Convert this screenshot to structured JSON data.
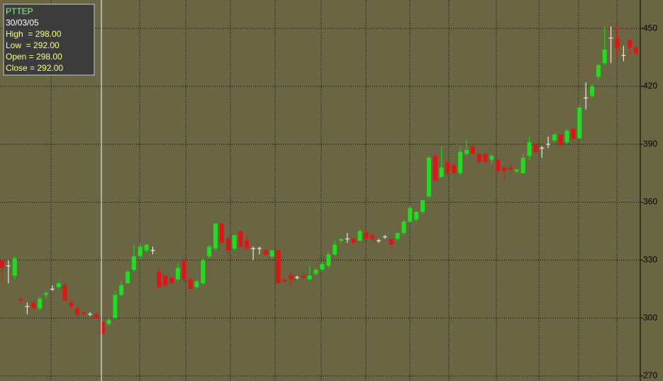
{
  "chart_data": {
    "type": "candlestick",
    "info": {
      "symbol": "PTTEP",
      "date": "30/03/05",
      "lines": [
        "High  = 298.00",
        "Low  = 292.00",
        "Open = 298.00",
        "Close = 292.00"
      ]
    },
    "up_color": "#1be01b",
    "down_color": "#e01414",
    "flat_color": "#ffffff",
    "grid": true,
    "ylim": [
      267.4,
      464.7
    ],
    "yticks": [
      270,
      300,
      330,
      360,
      390,
      420,
      450
    ],
    "open": [
      330,
      327,
      322,
      310,
      306,
      308,
      305,
      312,
      315,
      316,
      317,
      308,
      305,
      303,
      302,
      302,
      298,
      297,
      300,
      312,
      318,
      325,
      332,
      335,
      335,
      324,
      322,
      321,
      320,
      330,
      320,
      316,
      318,
      332,
      336,
      349,
      341,
      336,
      345,
      340,
      336,
      336,
      335,
      332,
      335,
      320,
      322,
      321,
      322,
      320,
      323,
      325,
      327,
      333,
      340,
      341,
      341,
      340,
      344,
      343,
      340,
      342,
      341,
      341,
      344,
      350,
      351,
      355,
      363,
      384,
      373,
      381,
      379,
      375,
      385,
      389,
      385,
      385,
      382,
      382,
      378,
      378,
      376,
      375,
      384,
      390,
      388,
      390,
      392,
      395,
      391,
      398,
      393,
      414,
      415,
      425,
      432,
      445,
      445,
      436,
      444,
      440
    ],
    "high": [
      330,
      330,
      332,
      312,
      308,
      309,
      311,
      314,
      317,
      319,
      318,
      309,
      306,
      303,
      303,
      302,
      298,
      300,
      314,
      319,
      325,
      338,
      339,
      338,
      337,
      326,
      322,
      321,
      328,
      330,
      321,
      320,
      331,
      338,
      349,
      349,
      342,
      343,
      345,
      343,
      337,
      337,
      336,
      335,
      335,
      320,
      324,
      322,
      323,
      327,
      326,
      329,
      334,
      340,
      341,
      344,
      342,
      346,
      346,
      343,
      341,
      343,
      341,
      344,
      351,
      358,
      355,
      361,
      384,
      384,
      389,
      382,
      380,
      389,
      392,
      389,
      386,
      385,
      385,
      382,
      378,
      380,
      377,
      385,
      394,
      390,
      389,
      394,
      396,
      395,
      398,
      398,
      411,
      422,
      421,
      432,
      451,
      451,
      452,
      441,
      444,
      441
    ],
    "low": [
      318,
      318,
      320,
      307,
      302,
      305,
      304,
      310,
      314,
      315,
      309,
      304,
      300,
      301,
      301,
      300,
      292,
      296,
      300,
      311,
      318,
      324,
      330,
      334,
      333,
      315,
      316,
      318,
      319,
      318,
      315,
      315,
      317,
      331,
      335,
      339,
      333,
      335,
      336,
      336,
      330,
      333,
      333,
      331,
      318,
      318,
      316,
      320,
      320,
      319,
      322,
      324,
      326,
      332,
      339,
      339,
      338,
      340,
      341,
      339,
      339,
      341,
      336,
      340,
      343,
      349,
      350,
      354,
      362,
      371,
      373,
      374,
      375,
      374,
      384,
      385,
      380,
      380,
      380,
      376,
      371,
      375,
      375,
      375,
      382,
      385,
      383,
      388,
      391,
      389,
      390,
      392,
      393,
      408,
      414,
      423,
      431,
      432,
      436,
      433,
      436,
      436
    ],
    "close": [
      326,
      327,
      331,
      309,
      306,
      305,
      310,
      313,
      315,
      318,
      309,
      306,
      302,
      302,
      302,
      300,
      292,
      299,
      312,
      317,
      324,
      332,
      337,
      338,
      335,
      316,
      317,
      318,
      326,
      320,
      315,
      319,
      330,
      337,
      349,
      339,
      335,
      343,
      337,
      336,
      336,
      336,
      333,
      335,
      318,
      319,
      320,
      321,
      321,
      322,
      325,
      328,
      333,
      338,
      341,
      341,
      339,
      345,
      341,
      341,
      340,
      342,
      338,
      344,
      350,
      357,
      355,
      361,
      383,
      371,
      378,
      375,
      375,
      386,
      387,
      385,
      381,
      381,
      384,
      376,
      376,
      377,
      377,
      383,
      391,
      386,
      388,
      390,
      395,
      390,
      397,
      393,
      409,
      414,
      420,
      431,
      439,
      445,
      440,
      436,
      440,
      437
    ]
  }
}
